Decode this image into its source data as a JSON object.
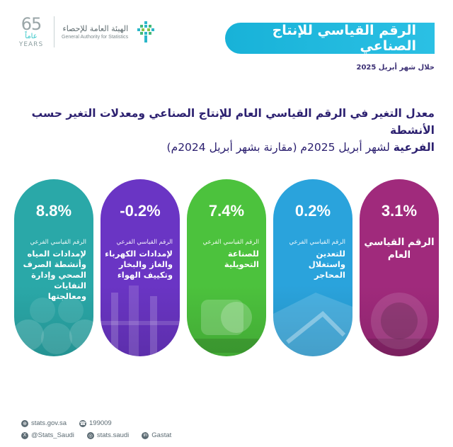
{
  "header": {
    "anniversary_number": "65",
    "anniversary_ar": "عاماً",
    "anniversary_en": "YEARS",
    "org_name_ar": "الهيئة العامة للإحصاء",
    "org_name_en": "General Authority for Statistics"
  },
  "title": "الرقم القياسي للإنتاج الصناعي",
  "period": "خلال شهر أبريل 2025",
  "heading": {
    "line1": "معدل التغير في الرقم القياسي العام للإنتاج الصناعي ومعدلات التغير حسب الأنشطة",
    "line2_bold": "الفرعية",
    "line2_rest": " لشهر أبريل 2025م (مقارنة بشهر أبريل 2024م)"
  },
  "cards": [
    {
      "value": "3.1%",
      "small": "",
      "name": "الرقم القياسي العام",
      "color": "#a02a7c"
    },
    {
      "value": "0.2%",
      "small": "الرقم القياسي الفرعي",
      "name": "للتعدين واستغلال المحاجر",
      "color": "#2aa3dc"
    },
    {
      "value": "7.4%",
      "small": "الرقم القياسي الفرعي",
      "name": "للصناعة التحويلية",
      "color": "#4cc23d"
    },
    {
      "value": "-0.2%",
      "small": "الرقم القياسي الفرعي",
      "name": "لإمدادات الكهرباء والغاز والبخار وتكييف الهواء",
      "color": "#6a35c4"
    },
    {
      "value": "8.8%",
      "small": "الرقم القياسي الفرعي",
      "name": "لإمدادات المياه وأنشطة الصرف الصحي وإدارة النفايات ومعالجتها",
      "color": "#2aa8a8"
    }
  ],
  "footer": {
    "website": "stats.gov.sa",
    "phone": "199009",
    "twitter": "@Stats_Saudi",
    "instagram": "stats.saudi",
    "linkedin": "Gastat"
  }
}
